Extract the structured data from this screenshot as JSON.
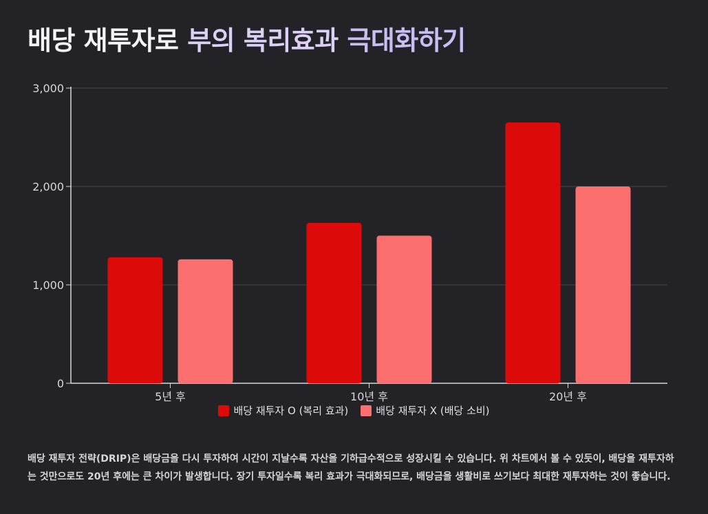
{
  "title": {
    "part1": "배당 재투자로",
    "part2": "부의 복리효과",
    "part3": "극대화하기"
  },
  "chart_data": {
    "type": "bar",
    "categories": [
      "5년 후",
      "10년 후",
      "20년 후"
    ],
    "series": [
      {
        "name": "배당 재투자 O (복리 효과)",
        "values": [
          1280,
          1630,
          2650
        ],
        "color": "#dd0a0a"
      },
      {
        "name": "배당 재투자 X (배당 소비)",
        "values": [
          1260,
          1500,
          2000
        ],
        "color": "#fb6f6f"
      }
    ],
    "ylim": [
      0,
      3000
    ],
    "yticks": [
      0,
      1000,
      2000,
      3000
    ],
    "ytick_labels": [
      "0",
      "1,000",
      "2,000",
      "3,000"
    ],
    "grid": true,
    "legend_position": "bottom"
  },
  "description": "배당 재투자 전략(DRIP)은 배당금을 다시 투자하여 시간이 지날수록 자산을 기하급수적으로 성장시킬 수 있습니다. 위 차트에서 볼 수 있듯이, 배당을 재투자하는 것만으로도 20년 후에는 큰 차이가 발생합니다. 장기 투자일수록 복리 효과가 극대화되므로, 배당금을 생활비로 쓰기보다 최대한 재투자하는 것이 좋습니다."
}
